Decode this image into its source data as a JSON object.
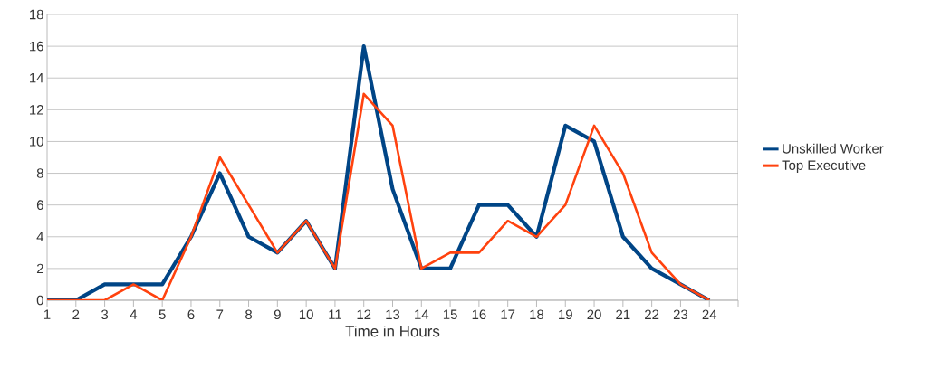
{
  "chart_data": {
    "type": "line",
    "xlabel": "Time in Hours",
    "x": [
      1,
      2,
      3,
      4,
      5,
      6,
      7,
      8,
      9,
      10,
      11,
      12,
      13,
      14,
      15,
      16,
      17,
      18,
      19,
      20,
      21,
      22,
      23,
      24
    ],
    "series": [
      {
        "name": "Unskilled Worker",
        "color": "#004586",
        "values": [
          0,
          0,
          1,
          1,
          1,
          4,
          8,
          4,
          3,
          5,
          2,
          16,
          7,
          2,
          2,
          6,
          6,
          4,
          11,
          10,
          4,
          2,
          1,
          0
        ]
      },
      {
        "name": "Top Executive",
        "color": "#ff420e",
        "values": [
          0,
          0,
          0,
          1,
          0,
          4,
          9,
          6,
          3,
          5,
          2,
          13,
          11,
          2,
          3,
          3,
          5,
          4,
          6,
          11,
          8,
          3,
          1,
          0
        ]
      }
    ],
    "xlim": [
      1,
      25
    ],
    "xticks": [
      1,
      2,
      3,
      4,
      5,
      6,
      7,
      8,
      9,
      10,
      11,
      12,
      13,
      14,
      15,
      16,
      17,
      18,
      19,
      20,
      21,
      22,
      23,
      24,
      {
        "value": 25,
        "label": null
      }
    ],
    "ylim": [
      0,
      18
    ],
    "yticks": [
      0,
      2,
      4,
      6,
      8,
      10,
      12,
      14,
      16,
      18
    ],
    "grid": "y",
    "legend": "right",
    "marker": "none",
    "line_style": "solid"
  }
}
